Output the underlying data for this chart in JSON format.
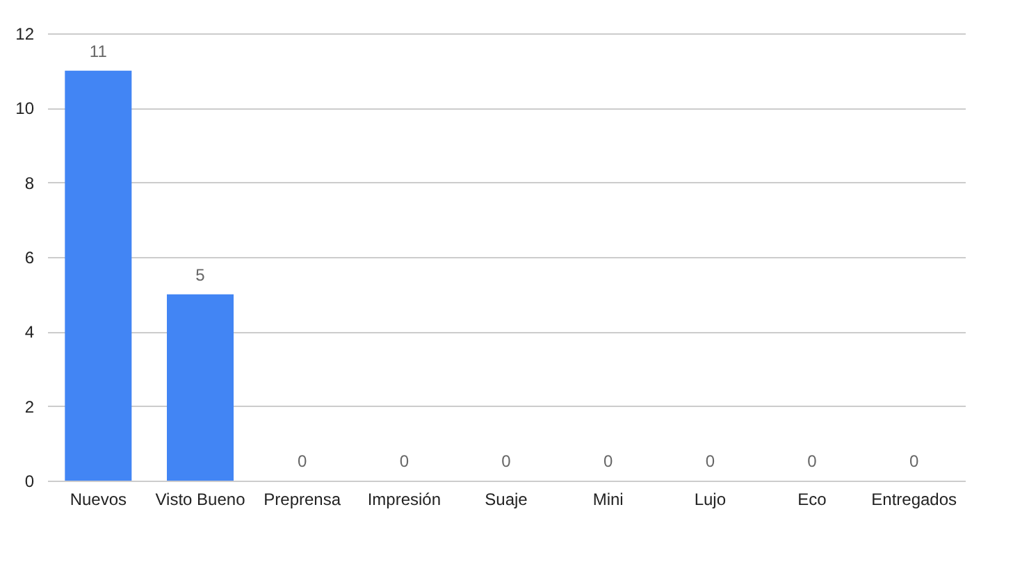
{
  "chart_data": {
    "type": "bar",
    "categories": [
      "Nuevos",
      "Visto Bueno",
      "Preprensa",
      "Impresión",
      "Suaje",
      "Mini",
      "Lujo",
      "Eco",
      "Entregados"
    ],
    "values": [
      11,
      5,
      0,
      0,
      0,
      0,
      0,
      0,
      0
    ],
    "color": "#4285f4",
    "ylim": [
      0,
      12
    ],
    "yticks": [
      0,
      2,
      4,
      6,
      8,
      10,
      12
    ],
    "grid": "y",
    "data_labels": true
  }
}
